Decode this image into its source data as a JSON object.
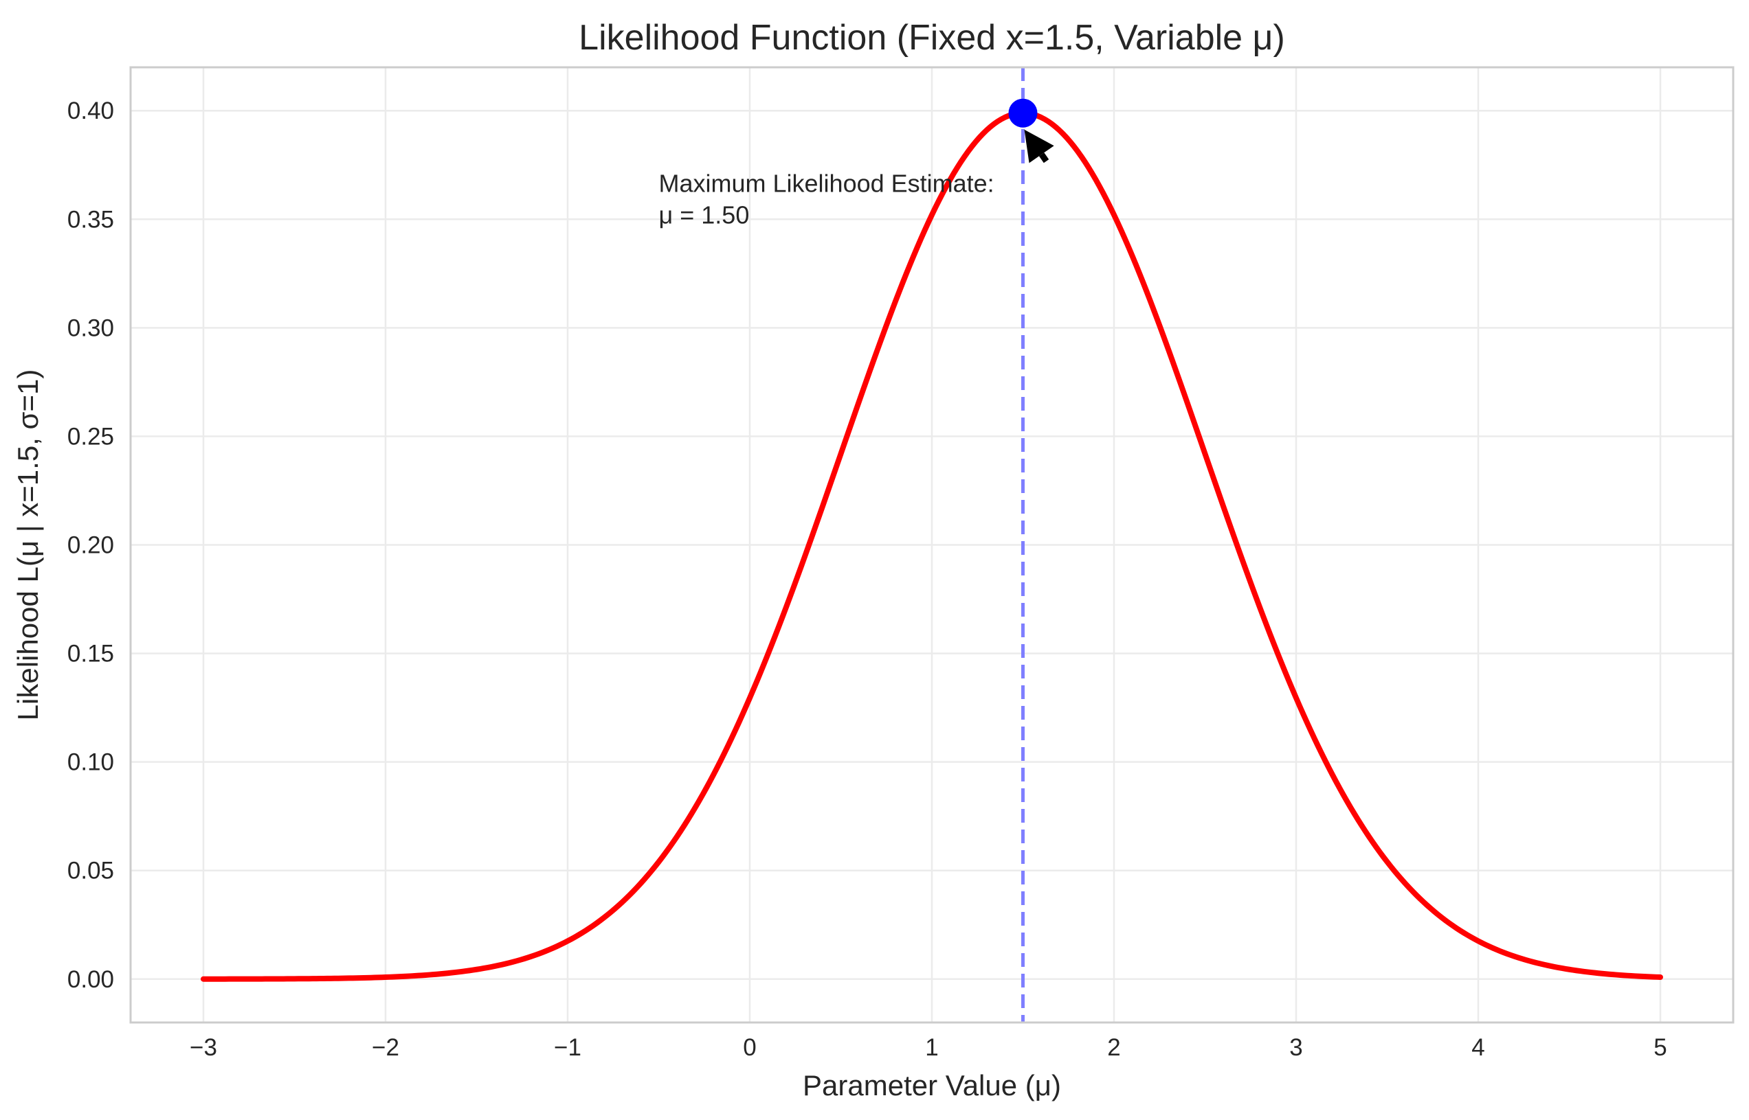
{
  "chart_data": {
    "type": "line",
    "title": "Likelihood Function (Fixed x=1.5, Variable μ)",
    "xlabel": "Parameter Value (μ)",
    "ylabel": "Likelihood L(μ | x=1.5, σ=1)",
    "xlim": [
      -3.4,
      5.4
    ],
    "ylim": [
      -0.02,
      0.42
    ],
    "grid": true,
    "x_ticks": [
      -3,
      -2,
      -1,
      0,
      1,
      2,
      3,
      4,
      5
    ],
    "x_tick_labels": [
      "−3",
      "−2",
      "−1",
      "0",
      "1",
      "2",
      "3",
      "4",
      "5"
    ],
    "y_ticks": [
      0.0,
      0.05,
      0.1,
      0.15,
      0.2,
      0.25,
      0.3,
      0.35,
      0.4
    ],
    "y_tick_labels": [
      "0.00",
      "0.05",
      "0.10",
      "0.15",
      "0.20",
      "0.25",
      "0.30",
      "0.35",
      "0.40"
    ],
    "series": [
      {
        "color": "#ff0000",
        "x": [
          -3.0,
          -2.5,
          -2.0,
          -1.5,
          -1.0,
          -0.5,
          0.0,
          0.25,
          0.5,
          0.75,
          1.0,
          1.25,
          1.5,
          1.75,
          2.0,
          2.25,
          2.5,
          2.75,
          3.0,
          3.5,
          4.0,
          4.5,
          5.0
        ],
        "y": [
          0.0,
          0.0001,
          0.0009,
          0.0044,
          0.0175,
          0.054,
          0.1295,
          0.1826,
          0.242,
          0.3011,
          0.3521,
          0.3867,
          0.3989,
          0.3867,
          0.3521,
          0.3011,
          0.242,
          0.1826,
          0.1295,
          0.054,
          0.0175,
          0.0044,
          0.0009
        ]
      }
    ],
    "mle_point": {
      "x": 1.5,
      "y": 0.3989,
      "color": "#0000ff"
    },
    "mle_line": {
      "x": 1.5,
      "color": "#7f7fff",
      "style": "dashed"
    },
    "annotation": {
      "lines": [
        "Maximum Likelihood Estimate:",
        "μ = 1.50"
      ],
      "target": {
        "x": 1.5,
        "y": 0.3989
      },
      "text_anchor": {
        "x": -0.5,
        "y": 0.35
      }
    }
  }
}
